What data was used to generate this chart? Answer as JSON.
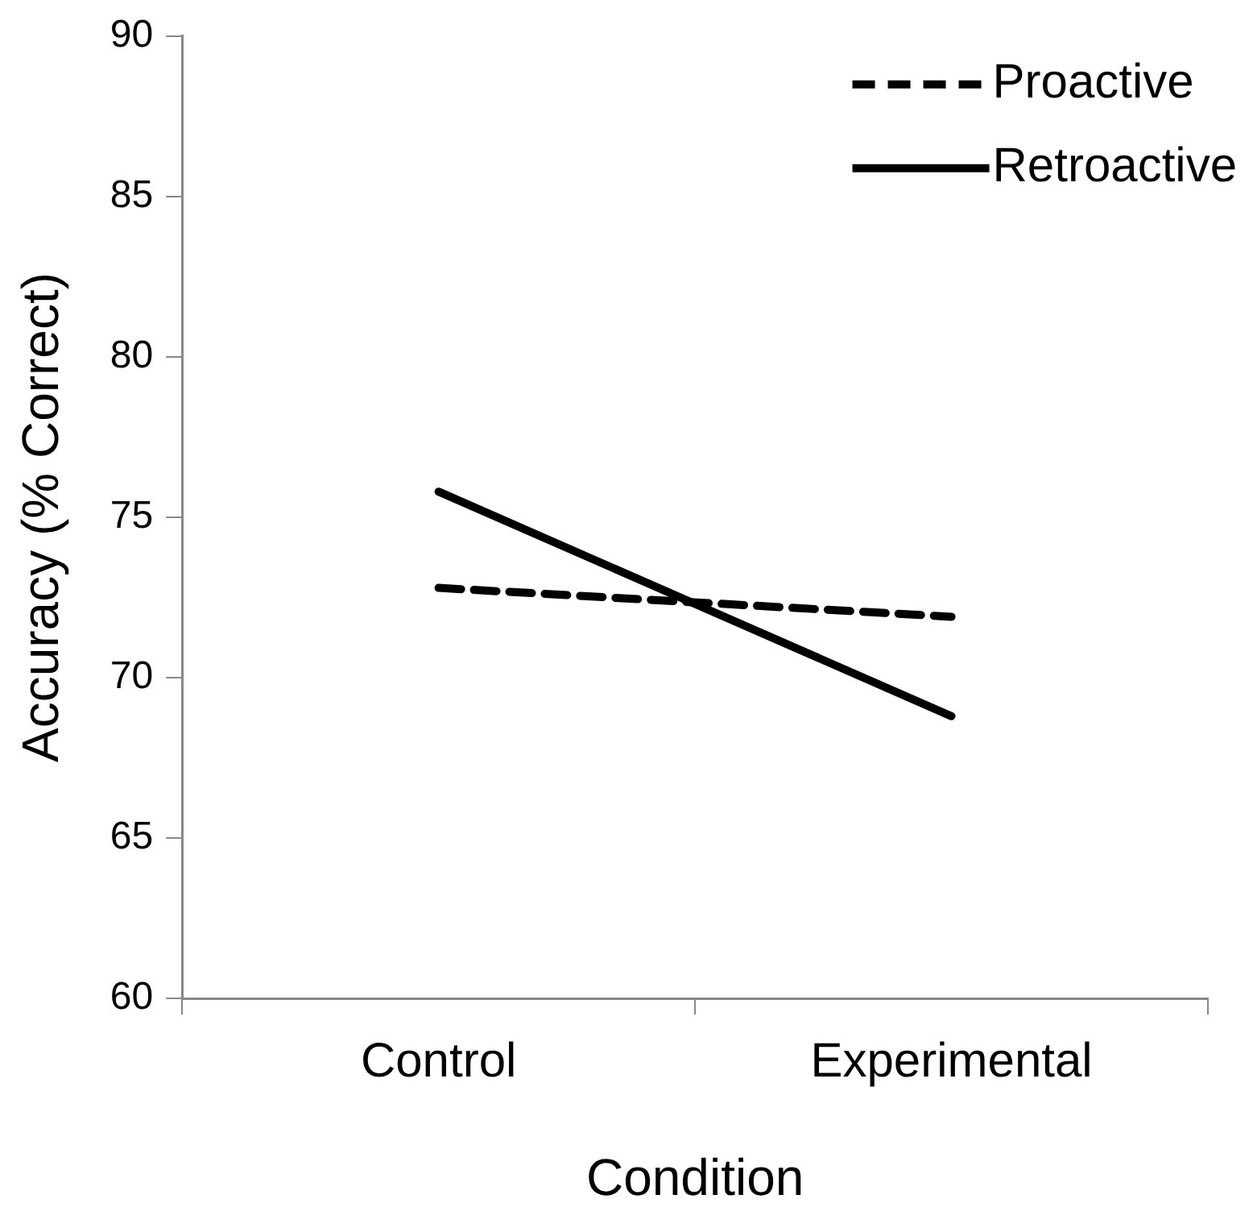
{
  "chart_data": {
    "type": "line",
    "xlabel": "Condition",
    "ylabel": "Accuracy (% Correct)",
    "categories": [
      "Control",
      "Experimental"
    ],
    "series": [
      {
        "name": "Proactive",
        "color": "#000000",
        "line_style": "dashed",
        "values": [
          72.8,
          71.9
        ]
      },
      {
        "name": "Retroactive",
        "color": "#000000",
        "line_style": "solid",
        "values": [
          75.8,
          68.8
        ]
      }
    ],
    "ylim": [
      60,
      90
    ],
    "yticks": [
      60,
      65,
      70,
      75,
      80,
      85,
      90
    ],
    "grid": false,
    "legend": "top right",
    "marker": "none"
  }
}
